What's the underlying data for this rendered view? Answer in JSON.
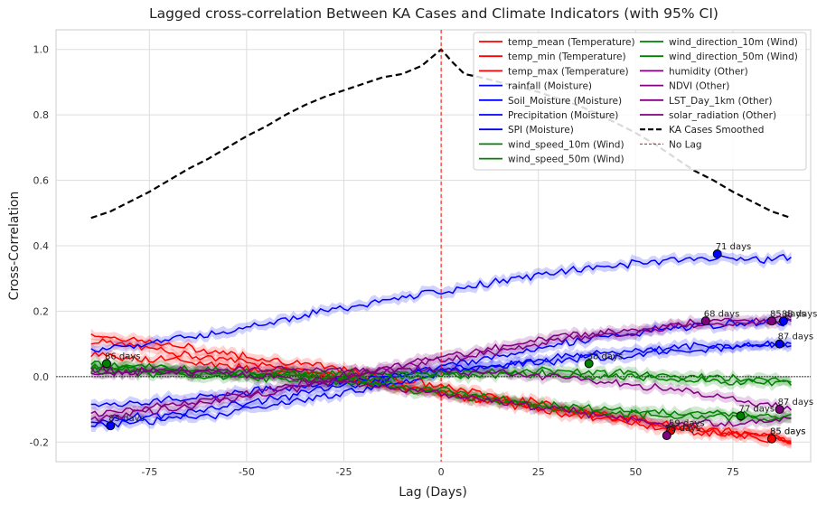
{
  "chart_data": {
    "type": "line",
    "title": "Lagged cross-correlation Between KA Cases and Climate Indicators (with 95% CI)",
    "xlabel": "Lag (Days)",
    "ylabel": "Cross-Correlation",
    "xlim": [
      -99,
      95
    ],
    "ylim": [
      -0.26,
      1.06
    ],
    "x_ticks": [
      -75,
      -50,
      -25,
      0,
      25,
      50,
      75
    ],
    "y_ticks": [
      -0.2,
      0.0,
      0.2,
      0.4,
      0.6,
      0.8,
      1.0
    ],
    "grid": true,
    "legend_position": "top-right",
    "series": [
      {
        "name": "temp_mean (Temperature)",
        "color": "#ff0000",
        "x": [
          -90,
          -60,
          -30,
          0,
          30,
          60,
          90
        ],
        "y": [
          0.13,
          0.08,
          0.03,
          -0.03,
          -0.09,
          -0.15,
          -0.19
        ]
      },
      {
        "name": "temp_min (Temperature)",
        "color": "#ff0000",
        "x": [
          -90,
          -60,
          -30,
          0,
          30,
          60,
          90
        ],
        "y": [
          0.11,
          0.06,
          0.01,
          -0.05,
          -0.11,
          -0.16,
          -0.2
        ]
      },
      {
        "name": "temp_max (Temperature)",
        "color": "#ff0000",
        "x": [
          -90,
          -60,
          -30,
          0,
          30,
          60,
          90
        ],
        "y": [
          0.07,
          0.04,
          0.0,
          -0.05,
          -0.1,
          -0.15,
          -0.19
        ]
      },
      {
        "name": "rainfall (Moisture)",
        "color": "#0000ff",
        "x": [
          -90,
          -60,
          -30,
          0,
          30,
          60,
          90
        ],
        "y": [
          0.08,
          0.13,
          0.2,
          0.26,
          0.32,
          0.36,
          0.36
        ]
      },
      {
        "name": "Soil_Moisture (Moisture)",
        "color": "#0000ff",
        "x": [
          -90,
          -60,
          -30,
          0,
          30,
          60,
          90
        ],
        "y": [
          -0.15,
          -0.12,
          -0.06,
          0.01,
          0.06,
          0.09,
          0.1
        ]
      },
      {
        "name": "Precipitation (Moisture)",
        "color": "#0000ff",
        "x": [
          -90,
          -60,
          -30,
          0,
          30,
          60,
          90
        ],
        "y": [
          -0.14,
          -0.1,
          -0.04,
          0.03,
          0.1,
          0.15,
          0.17
        ]
      },
      {
        "name": "SPI (Moisture)",
        "color": "#0000ff",
        "x": [
          -90,
          -60,
          -30,
          0,
          30,
          60,
          90
        ],
        "y": [
          -0.09,
          -0.06,
          -0.02,
          0.02,
          0.05,
          0.08,
          0.1
        ]
      },
      {
        "name": "wind_speed_10m (Wind)",
        "color": "#008000",
        "x": [
          -90,
          -60,
          -30,
          0,
          30,
          60,
          90
        ],
        "y": [
          0.03,
          0.01,
          0.0,
          -0.04,
          -0.09,
          -0.11,
          -0.12
        ]
      },
      {
        "name": "wind_speed_50m (Wind)",
        "color": "#008000",
        "x": [
          -90,
          -60,
          -30,
          0,
          30,
          60,
          90
        ],
        "y": [
          0.02,
          0.0,
          -0.01,
          -0.05,
          -0.1,
          -0.12,
          -0.13
        ]
      },
      {
        "name": "wind_direction_10m (Wind)",
        "color": "#008000",
        "x": [
          -90,
          -60,
          -30,
          0,
          30,
          60,
          90
        ],
        "y": [
          0.04,
          0.02,
          0.01,
          0.01,
          0.02,
          0.0,
          -0.01
        ]
      },
      {
        "name": "wind_direction_50m (Wind)",
        "color": "#008000",
        "x": [
          -90,
          -60,
          -30,
          0,
          30,
          60,
          90
        ],
        "y": [
          0.03,
          0.01,
          0.0,
          0.0,
          0.01,
          -0.01,
          -0.02
        ]
      },
      {
        "name": "humidity (Other)",
        "color": "#800080",
        "x": [
          -90,
          -60,
          -30,
          0,
          30,
          60,
          90
        ],
        "y": [
          -0.13,
          -0.08,
          -0.02,
          0.05,
          0.11,
          0.15,
          0.17
        ]
      },
      {
        "name": "NDVI (Other)",
        "color": "#800080",
        "x": [
          -90,
          -60,
          -30,
          0,
          30,
          60,
          90
        ],
        "y": [
          -0.12,
          -0.07,
          -0.01,
          0.06,
          0.12,
          0.16,
          0.18
        ]
      },
      {
        "name": "LST_Day_1km (Other)",
        "color": "#800080",
        "x": [
          -90,
          -60,
          -30,
          0,
          30,
          60,
          90
        ],
        "y": [
          0.02,
          0.01,
          -0.01,
          -0.05,
          -0.1,
          -0.15,
          -0.13
        ]
      },
      {
        "name": "solar_radiation (Other)",
        "color": "#800080",
        "x": [
          -90,
          -60,
          -30,
          0,
          30,
          60,
          90
        ],
        "y": [
          0.01,
          0.02,
          0.02,
          0.02,
          0.0,
          -0.04,
          -0.1
        ]
      },
      {
        "name": "KA Cases Smoothed",
        "color": "#000000",
        "dashed": true,
        "x": [
          -90,
          -85,
          -80,
          -75,
          -70,
          -65,
          -60,
          -55,
          -50,
          -45,
          -40,
          -35,
          -30,
          -25,
          -20,
          -15,
          -10,
          -5,
          0,
          3,
          6,
          10,
          15,
          20,
          25,
          30,
          35,
          40,
          45,
          50,
          55,
          60,
          65,
          70,
          75,
          80,
          85,
          90
        ],
        "y": [
          0.485,
          0.505,
          0.535,
          0.565,
          0.6,
          0.635,
          0.665,
          0.7,
          0.735,
          0.765,
          0.8,
          0.83,
          0.855,
          0.875,
          0.895,
          0.915,
          0.925,
          0.95,
          1.0,
          0.96,
          0.925,
          0.915,
          0.9,
          0.885,
          0.87,
          0.85,
          0.83,
          0.805,
          0.775,
          0.745,
          0.71,
          0.67,
          0.63,
          0.6,
          0.565,
          0.535,
          0.505,
          0.485
        ]
      }
    ],
    "no_lag": {
      "name": "No Lag",
      "x": 0,
      "color": "#ff0000"
    },
    "annotations": [
      {
        "text": "71 days",
        "x": 71,
        "y": 0.375,
        "color": "#0000ff"
      },
      {
        "text": "68 days",
        "x": 68,
        "y": 0.17,
        "color": "#800080"
      },
      {
        "text": "85 days",
        "x": 85,
        "y": 0.17,
        "color": "#800080"
      },
      {
        "text": "88 days",
        "x": 88,
        "y": 0.17,
        "color": "#0000ff"
      },
      {
        "text": "87 days",
        "x": 87,
        "y": 0.1,
        "color": "#0000ff"
      },
      {
        "text": "86 days",
        "x": -86,
        "y": 0.04,
        "color": "#008000"
      },
      {
        "text": "38 days",
        "x": 38,
        "y": 0.04,
        "color": "#008000"
      },
      {
        "text": "87 days",
        "x": 87,
        "y": -0.1,
        "color": "#800080"
      },
      {
        "text": "77 days",
        "x": 77,
        "y": -0.12,
        "color": "#008000"
      },
      {
        "text": "59 days",
        "x": 59,
        "y": -0.165,
        "color": "#ff0000"
      },
      {
        "text": "58 days",
        "x": 58,
        "y": -0.18,
        "color": "#800080"
      },
      {
        "text": "85 days",
        "x": 85,
        "y": -0.19,
        "color": "#ff0000"
      },
      {
        "text": "85 days",
        "x": 85,
        "y": -0.19,
        "color": "#ff0000"
      },
      {
        "text": "85 days",
        "x": -85,
        "y": -0.15,
        "color": "#0000ff"
      }
    ]
  }
}
